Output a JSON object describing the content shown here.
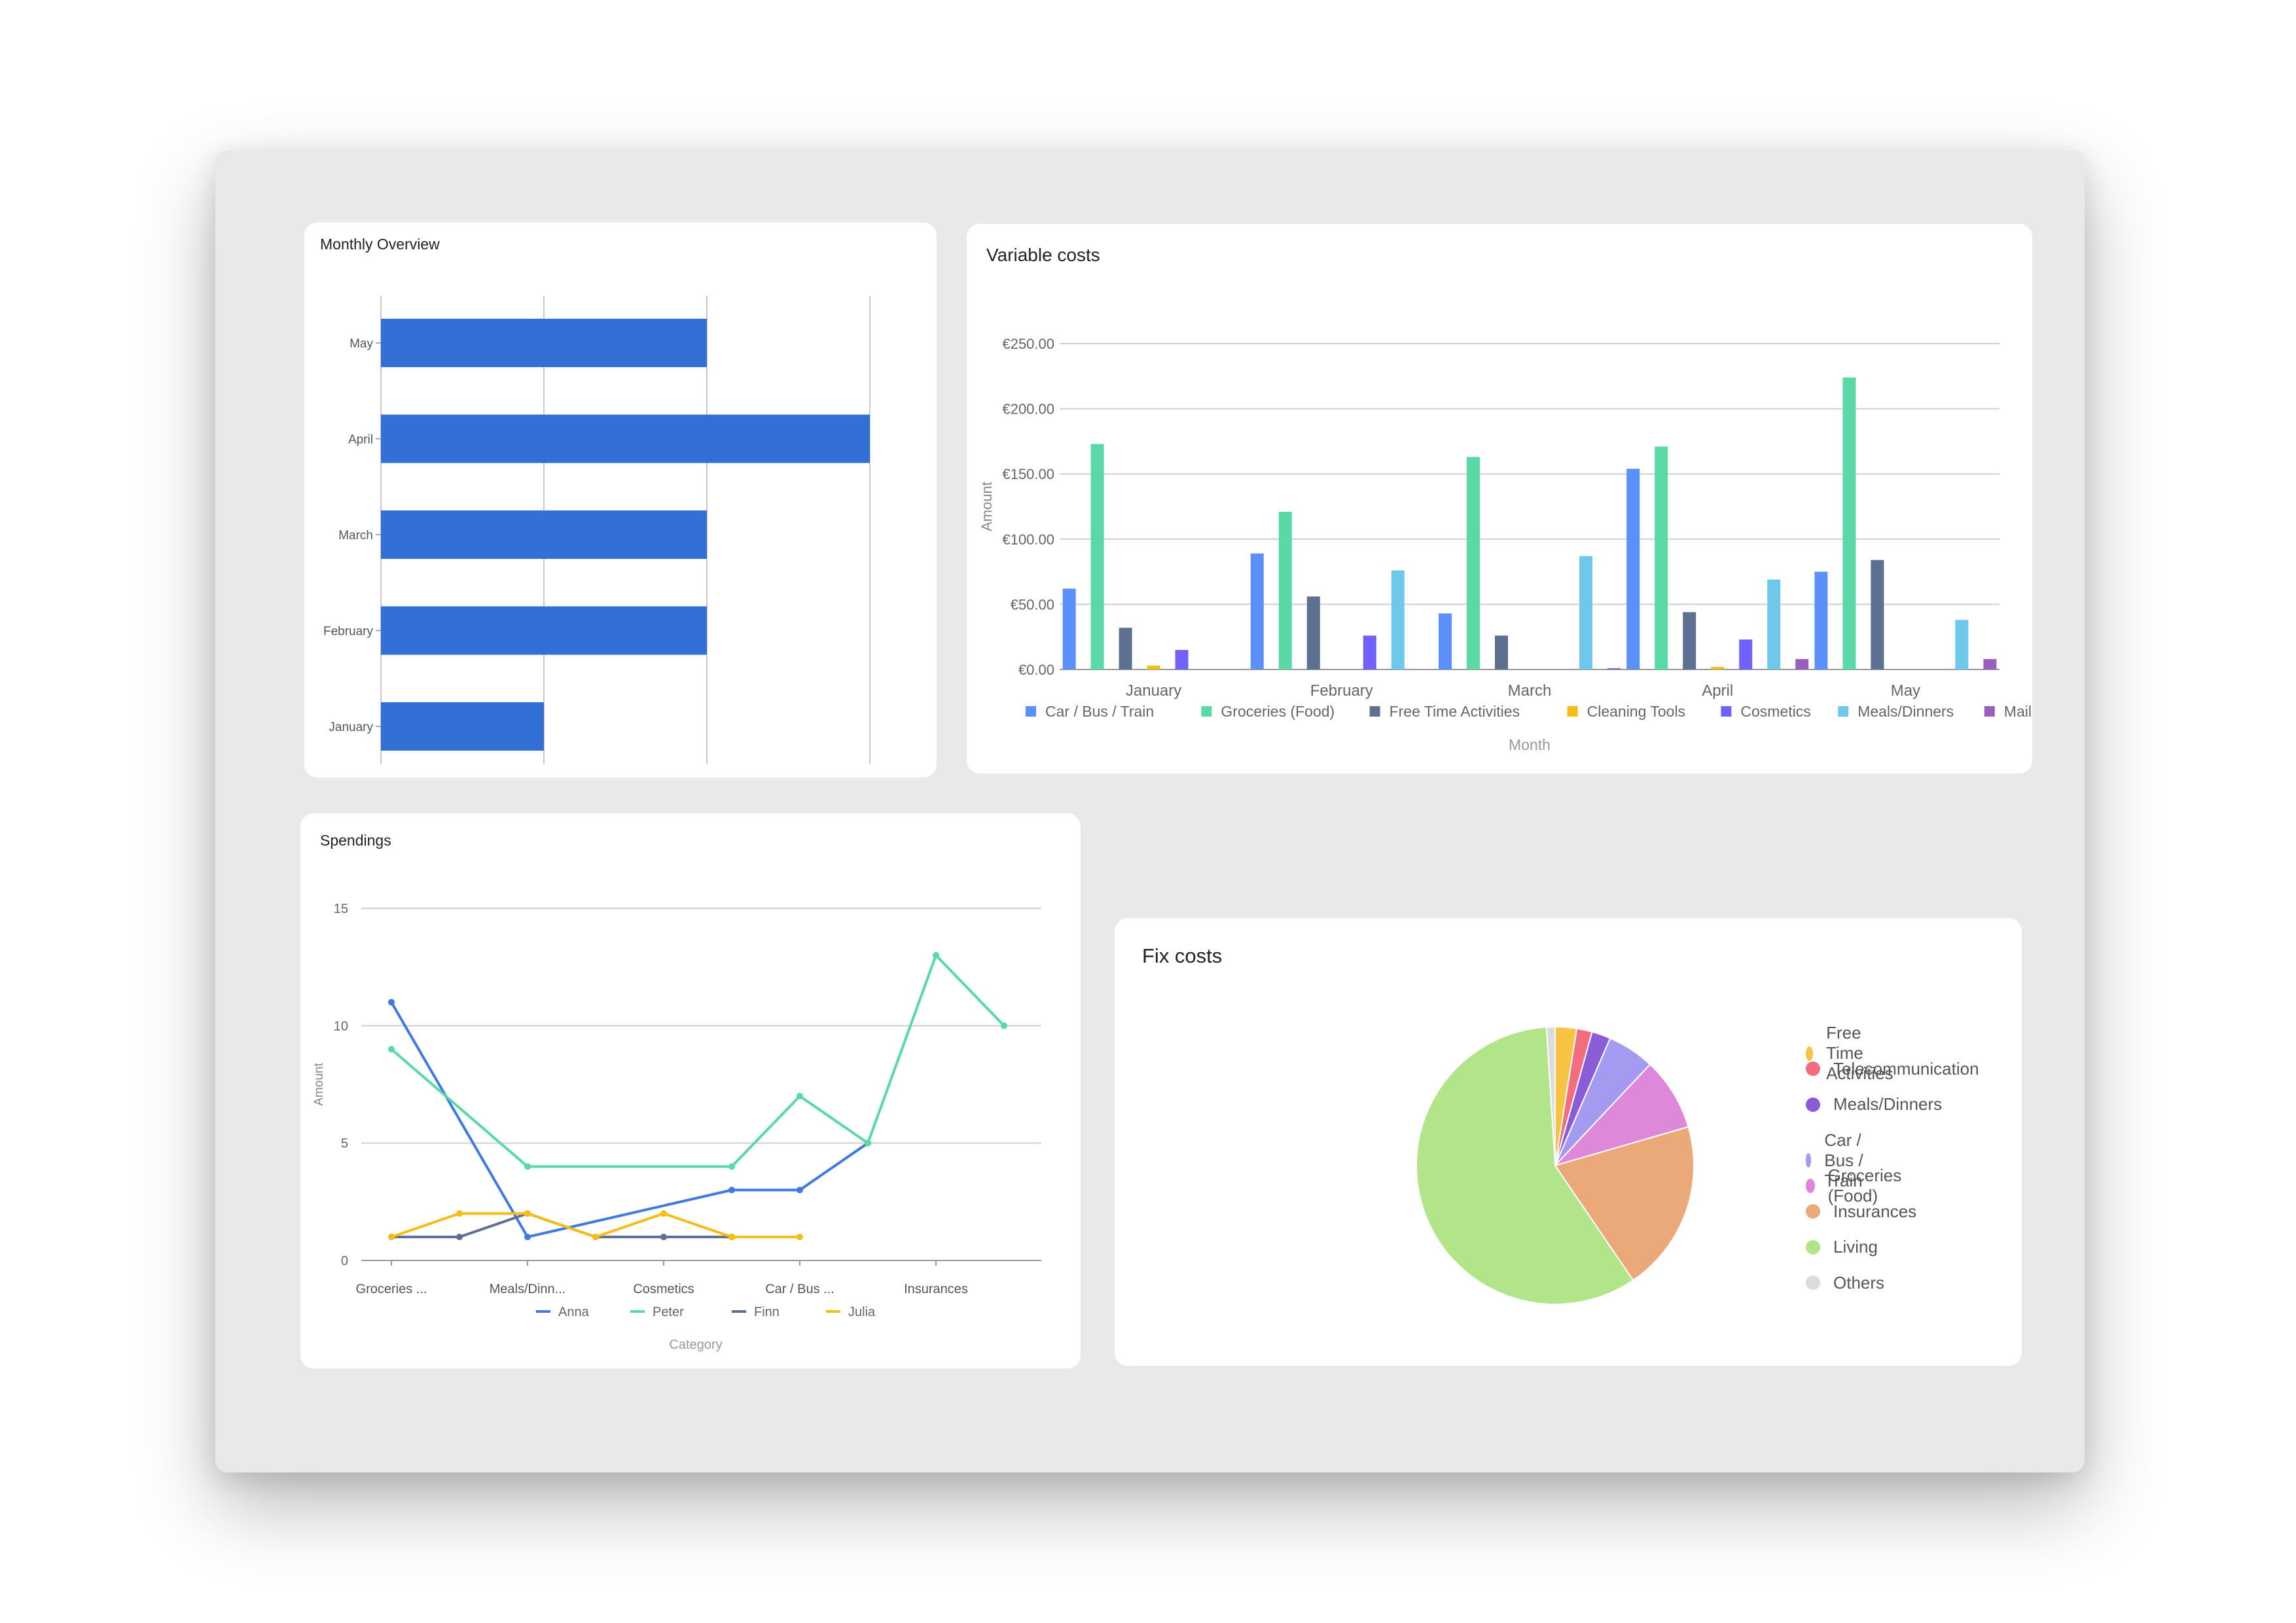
{
  "monthly_overview": {
    "title": "Monthly Overview",
    "chart_data": {
      "type": "bar",
      "orientation": "horizontal",
      "categories": [
        "May",
        "April",
        "March",
        "February",
        "January"
      ],
      "values": [
        2,
        3,
        2,
        2,
        1
      ],
      "xlim": [
        0,
        3
      ],
      "grid": true,
      "color": "#3370d6"
    }
  },
  "variable_costs": {
    "title": "Variable costs",
    "chart_data": {
      "type": "bar",
      "categories": [
        "January",
        "February",
        "March",
        "April",
        "May"
      ],
      "series": [
        {
          "name": "Car / Bus / Train",
          "color": "#5b8ff9",
          "values": [
            62,
            89,
            43,
            154,
            75
          ]
        },
        {
          "name": "Groceries (Food)",
          "color": "#5ad8a6",
          "values": [
            173,
            121,
            163,
            171,
            224
          ]
        },
        {
          "name": "Free Time Activities",
          "color": "#5d7092",
          "values": [
            32,
            56,
            26,
            44,
            84
          ]
        },
        {
          "name": "Cleaning Tools",
          "color": "#f6bd16",
          "values": [
            3,
            0,
            0,
            2,
            0
          ]
        },
        {
          "name": "Cosmetics",
          "color": "#7262fd",
          "values": [
            15,
            26,
            0,
            23,
            0
          ]
        },
        {
          "name": "Meals/Dinners",
          "color": "#6dc8ec",
          "values": [
            0,
            76,
            87,
            69,
            38
          ]
        },
        {
          "name": "Mail",
          "color": "#9661bc",
          "values": [
            0,
            0,
            1,
            8,
            8
          ]
        }
      ],
      "yticks": [
        "€250.00",
        "€200.00",
        "€150.00",
        "€100.00",
        "€50.00",
        "€0.00"
      ],
      "ylim": [
        0,
        250
      ],
      "xlabel": "Month",
      "ylabel": "Amount",
      "legend": "bottom"
    }
  },
  "spendings": {
    "title": "Spendings",
    "chart_data": {
      "type": "line",
      "x": [
        0,
        1,
        2,
        3,
        4,
        5,
        6,
        7,
        8,
        9
      ],
      "xtick_labels": [
        {
          "x": 0,
          "label": "Groceries ..."
        },
        {
          "x": 2,
          "label": "Meals/Dinn..."
        },
        {
          "x": 4,
          "label": "Cosmetics"
        },
        {
          "x": 6,
          "label": "Car / Bus ..."
        },
        {
          "x": 8,
          "label": "Insurances"
        }
      ],
      "series": [
        {
          "name": "Anna",
          "color": "#3e7be0",
          "values": [
            11,
            null,
            1,
            null,
            null,
            3,
            3,
            5,
            null,
            null
          ],
          "points": [
            [
              0,
              11
            ],
            [
              2,
              1
            ],
            [
              5,
              3
            ],
            [
              6,
              3
            ],
            [
              7,
              5
            ]
          ]
        },
        {
          "name": "Peter",
          "color": "#5ad8a6",
          "points": [
            [
              0,
              9
            ],
            [
              2,
              4
            ],
            [
              5,
              4
            ],
            [
              6,
              7
            ],
            [
              7,
              5
            ],
            [
              8,
              13
            ],
            [
              9,
              10
            ]
          ]
        },
        {
          "name": "Finn",
          "color": "#5d7092",
          "points": [
            [
              0,
              1
            ],
            [
              1,
              1
            ],
            [
              2,
              2
            ],
            [
              3,
              1
            ],
            [
              4,
              1
            ],
            [
              5,
              1
            ]
          ]
        },
        {
          "name": "Julia",
          "color": "#f6bd16",
          "points": [
            [
              0,
              1
            ],
            [
              1,
              2
            ],
            [
              2,
              2
            ],
            [
              3,
              1
            ],
            [
              4,
              2
            ],
            [
              5,
              1
            ],
            [
              6,
              1
            ]
          ]
        }
      ],
      "yticks": [
        "15",
        "10",
        "5",
        "0"
      ],
      "ylim": [
        0,
        15
      ],
      "xlabel": "Category",
      "ylabel": "Amount",
      "legend": "bottom"
    }
  },
  "fix_costs": {
    "title": "Fix costs",
    "chart_data": {
      "type": "pie",
      "slices": [
        {
          "label": "Free Time Activities",
          "value": 2.5,
          "color": "#f6c343"
        },
        {
          "label": "Telecommunication",
          "value": 1.8,
          "color": "#f26d7d"
        },
        {
          "label": "Meals/Dinners",
          "value": 2.2,
          "color": "#8a5cd6"
        },
        {
          "label": "Car / Bus / Train",
          "value": 5.5,
          "color": "#a49af0"
        },
        {
          "label": "Groceries (Food)",
          "value": 8.5,
          "color": "#de88d9"
        },
        {
          "label": "Insurances",
          "value": 20,
          "color": "#eba97a"
        },
        {
          "label": "Living",
          "value": 58.5,
          "color": "#b2e48a"
        },
        {
          "label": "Others",
          "value": 1.0,
          "color": "#dcdcdc"
        }
      ],
      "legend": "right"
    }
  }
}
